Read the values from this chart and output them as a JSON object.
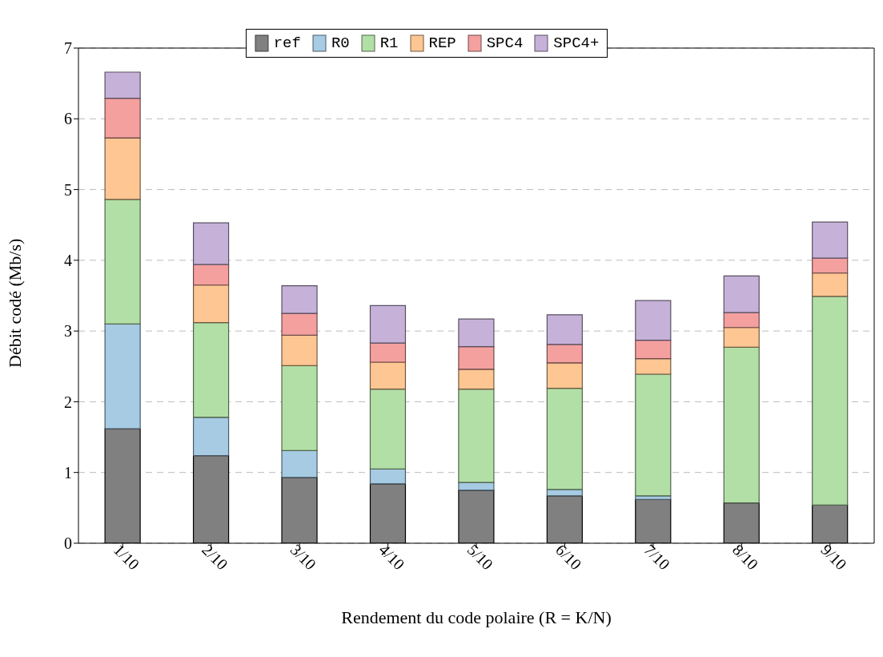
{
  "chart_data": {
    "type": "bar",
    "stacked": true,
    "xlabel": "Rendement du code polaire (R = K/N)",
    "ylabel": "Débit codé (Mb/s)",
    "categories": [
      "1/10",
      "2/10",
      "3/10",
      "4/10",
      "5/10",
      "6/10",
      "7/10",
      "8/10",
      "9/10"
    ],
    "series": [
      {
        "name": "ref",
        "color": "#808080",
        "values": [
          1.62,
          1.24,
          0.93,
          0.84,
          0.75,
          0.67,
          0.62,
          0.57,
          0.54
        ]
      },
      {
        "name": "R0",
        "color": "#a6cbe3",
        "values": [
          1.48,
          0.54,
          0.38,
          0.21,
          0.11,
          0.09,
          0.05,
          null,
          0.0
        ]
      },
      {
        "name": "R1",
        "color": "#b2dfa6",
        "values": [
          1.76,
          1.34,
          1.2,
          1.13,
          1.32,
          1.43,
          1.72,
          2.2,
          2.95
        ]
      },
      {
        "name": "REP",
        "color": "#fdc692",
        "values": [
          0.87,
          0.53,
          0.43,
          0.38,
          0.28,
          0.36,
          0.22,
          0.28,
          0.33
        ]
      },
      {
        "name": "SPC4",
        "color": "#f4a09f",
        "values": [
          0.56,
          0.29,
          0.31,
          0.27,
          0.32,
          0.26,
          0.26,
          0.21,
          0.21
        ]
      },
      {
        "name": "SPC4+",
        "color": "#c6b1d8",
        "values": [
          0.37,
          0.59,
          0.39,
          0.53,
          0.39,
          0.42,
          0.56,
          0.52,
          0.51
        ]
      }
    ],
    "ylim": [
      0,
      7
    ],
    "yticks": [
      0,
      1,
      2,
      3,
      4,
      5,
      6,
      7
    ],
    "grid": "y",
    "legend": "top"
  }
}
